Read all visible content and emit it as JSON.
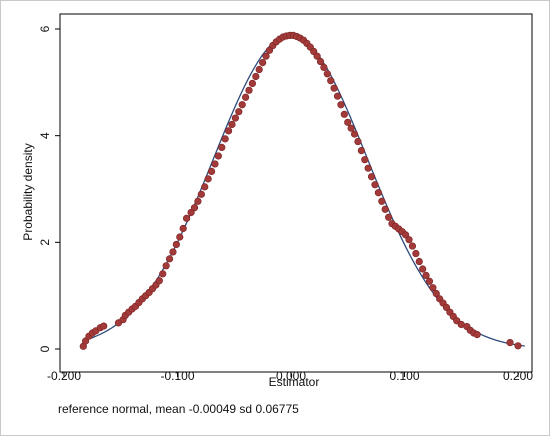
{
  "chart_data": {
    "type": "scatter",
    "title": "",
    "xlabel": "Estimator",
    "ylabel": "Probability density",
    "xlim": [
      -0.2,
      0.2
    ],
    "ylim": [
      0,
      6
    ],
    "x_ticks": [
      -0.2,
      -0.1,
      0.0,
      0.1,
      0.2
    ],
    "x_tick_labels": [
      "-0.200",
      "-0.100",
      "0.000",
      "0.100",
      "0.200"
    ],
    "y_ticks": [
      0,
      2,
      4,
      6
    ],
    "y_tick_labels": [
      "0",
      "2",
      "4",
      "6"
    ],
    "grid": false,
    "note": "reference normal, mean -0.00049 sd 0.06775",
    "reference_curve": {
      "type": "normal",
      "mean": -0.00049,
      "sd": 0.06775,
      "color": "#2f4b7c"
    },
    "series": [
      {
        "marker_color": "#a33a3a",
        "marker_edge": "#7a2323",
        "points": [
          [
            -0.183,
            0.05
          ],
          [
            -0.181,
            0.15
          ],
          [
            -0.178,
            0.24
          ],
          [
            -0.175,
            0.3
          ],
          [
            -0.172,
            0.34
          ],
          [
            -0.168,
            0.4
          ],
          [
            -0.165,
            0.43
          ],
          [
            -0.152,
            0.49
          ],
          [
            -0.148,
            0.55
          ],
          [
            -0.146,
            0.63
          ],
          [
            -0.143,
            0.69
          ],
          [
            -0.14,
            0.75
          ],
          [
            -0.137,
            0.8
          ],
          [
            -0.134,
            0.87
          ],
          [
            -0.131,
            0.94
          ],
          [
            -0.128,
            1.0
          ],
          [
            -0.125,
            1.06
          ],
          [
            -0.122,
            1.13
          ],
          [
            -0.119,
            1.2
          ],
          [
            -0.116,
            1.28
          ],
          [
            -0.113,
            1.41
          ],
          [
            -0.11,
            1.56
          ],
          [
            -0.107,
            1.69
          ],
          [
            -0.104,
            1.82
          ],
          [
            -0.101,
            1.96
          ],
          [
            -0.098,
            2.1
          ],
          [
            -0.095,
            2.26
          ],
          [
            -0.092,
            2.45
          ],
          [
            -0.088,
            2.56
          ],
          [
            -0.085,
            2.65
          ],
          [
            -0.082,
            2.77
          ],
          [
            -0.079,
            2.9
          ],
          [
            -0.076,
            3.04
          ],
          [
            -0.073,
            3.19
          ],
          [
            -0.07,
            3.33
          ],
          [
            -0.067,
            3.47
          ],
          [
            -0.064,
            3.62
          ],
          [
            -0.061,
            3.78
          ],
          [
            -0.058,
            3.94
          ],
          [
            -0.055,
            4.09
          ],
          [
            -0.052,
            4.21
          ],
          [
            -0.049,
            4.33
          ],
          [
            -0.046,
            4.45
          ],
          [
            -0.043,
            4.58
          ],
          [
            -0.04,
            4.72
          ],
          [
            -0.037,
            4.85
          ],
          [
            -0.034,
            4.98
          ],
          [
            -0.031,
            5.11
          ],
          [
            -0.028,
            5.24
          ],
          [
            -0.025,
            5.37
          ],
          [
            -0.022,
            5.49
          ],
          [
            -0.019,
            5.6
          ],
          [
            -0.016,
            5.69
          ],
          [
            -0.013,
            5.76
          ],
          [
            -0.01,
            5.81
          ],
          [
            -0.007,
            5.85
          ],
          [
            -0.004,
            5.87
          ],
          [
            -0.001,
            5.88
          ],
          [
            0.002,
            5.88
          ],
          [
            0.005,
            5.86
          ],
          [
            0.008,
            5.83
          ],
          [
            0.011,
            5.79
          ],
          [
            0.014,
            5.73
          ],
          [
            0.017,
            5.66
          ],
          [
            0.02,
            5.58
          ],
          [
            0.023,
            5.49
          ],
          [
            0.026,
            5.39
          ],
          [
            0.029,
            5.28
          ],
          [
            0.032,
            5.16
          ],
          [
            0.035,
            5.03
          ],
          [
            0.038,
            4.89
          ],
          [
            0.041,
            4.74
          ],
          [
            0.044,
            4.58
          ],
          [
            0.047,
            4.4
          ],
          [
            0.05,
            4.25
          ],
          [
            0.053,
            4.14
          ],
          [
            0.056,
            4.03
          ],
          [
            0.059,
            3.89
          ],
          [
            0.062,
            3.72
          ],
          [
            0.065,
            3.55
          ],
          [
            0.068,
            3.39
          ],
          [
            0.071,
            3.23
          ],
          [
            0.074,
            3.08
          ],
          [
            0.077,
            2.93
          ],
          [
            0.08,
            2.77
          ],
          [
            0.083,
            2.62
          ],
          [
            0.086,
            2.47
          ],
          [
            0.089,
            2.35
          ],
          [
            0.092,
            2.3
          ],
          [
            0.095,
            2.25
          ],
          [
            0.098,
            2.2
          ],
          [
            0.101,
            2.14
          ],
          [
            0.104,
            2.05
          ],
          [
            0.107,
            1.93
          ],
          [
            0.11,
            1.79
          ],
          [
            0.113,
            1.64
          ],
          [
            0.116,
            1.5
          ],
          [
            0.119,
            1.38
          ],
          [
            0.122,
            1.27
          ],
          [
            0.125,
            1.15
          ],
          [
            0.128,
            1.04
          ],
          [
            0.131,
            0.94
          ],
          [
            0.134,
            0.86
          ],
          [
            0.137,
            0.78
          ],
          [
            0.14,
            0.69
          ],
          [
            0.143,
            0.61
          ],
          [
            0.146,
            0.53
          ],
          [
            0.15,
            0.46
          ],
          [
            0.155,
            0.42
          ],
          [
            0.158,
            0.35
          ],
          [
            0.161,
            0.3
          ],
          [
            0.164,
            0.27
          ],
          [
            0.193,
            0.12
          ],
          [
            0.2,
            0.06
          ]
        ]
      }
    ]
  }
}
